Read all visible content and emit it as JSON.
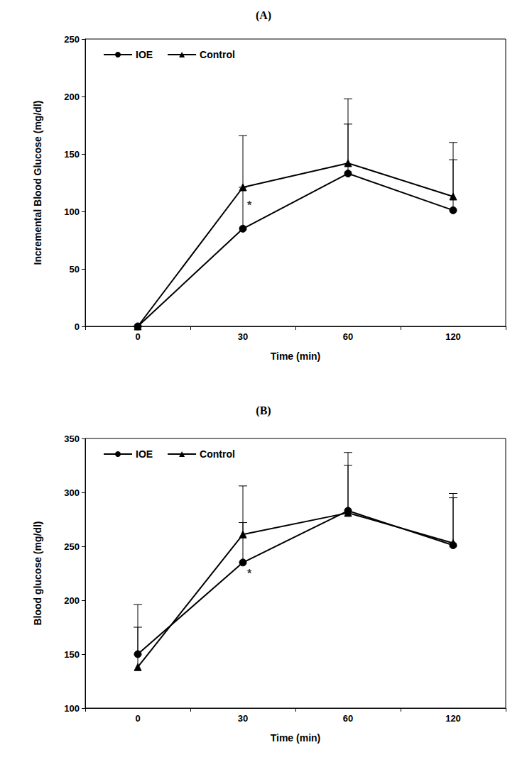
{
  "chart_data": [
    {
      "type": "line",
      "title": "(A)",
      "x_label": "Time (min)",
      "y_label": "Incremental Blood Glucose (mg/dl)",
      "categories": [
        "0",
        "30",
        "60",
        "120"
      ],
      "series": [
        {
          "name": "IOE",
          "color": "#000000",
          "marker": "circle",
          "values": [
            0,
            85,
            133,
            101
          ],
          "errors": [
            0,
            36,
            43,
            44
          ]
        },
        {
          "name": "Control",
          "color": "#000000",
          "marker": "triangle",
          "values": [
            0,
            121,
            142,
            113
          ],
          "errors": [
            0,
            45,
            56,
            47
          ]
        }
      ],
      "annotations": [
        {
          "text": "*",
          "x": "30",
          "y": 105
        }
      ],
      "ylim": [
        0,
        250
      ],
      "yticks": [
        0,
        50,
        100,
        150,
        200,
        250
      ],
      "grid": false,
      "legend": "upper left"
    },
    {
      "type": "line",
      "title": "(B)",
      "x_label": "Time (min)",
      "y_label": "Blood glucose (mg/dl)",
      "categories": [
        "0",
        "30",
        "60",
        "120"
      ],
      "series": [
        {
          "name": "IOE",
          "color": "#000000",
          "marker": "circle",
          "values": [
            150,
            235,
            283,
            251
          ],
          "errors": [
            46,
            37,
            54,
            48
          ]
        },
        {
          "name": "Control",
          "color": "#000000",
          "marker": "triangle",
          "values": [
            138,
            261,
            281,
            253
          ],
          "errors": [
            37,
            45,
            44,
            42
          ]
        }
      ],
      "annotations": [
        {
          "text": "*",
          "x": "30",
          "y": 225
        }
      ],
      "ylim": [
        100,
        350
      ],
      "yticks": [
        100,
        150,
        200,
        250,
        300,
        350
      ],
      "grid": false,
      "legend": "upper left"
    }
  ]
}
